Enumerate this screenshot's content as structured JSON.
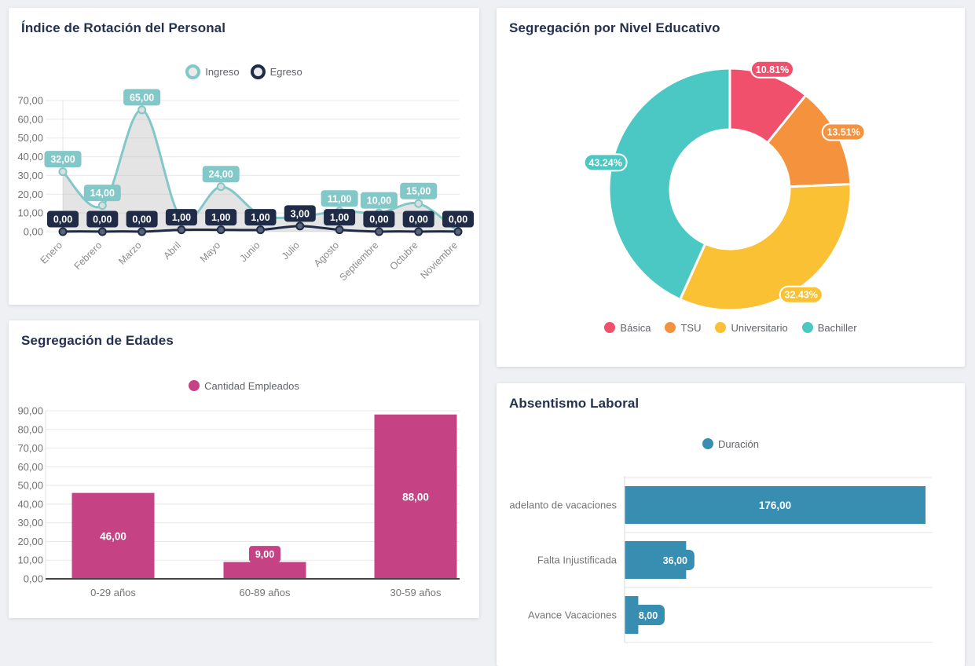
{
  "theme": {
    "page_bg": "#eef0f4",
    "panel_bg": "#ffffff",
    "title_color": "#24314f",
    "gridline": "#e8e8e8",
    "axis_text": "#737373",
    "category_text": "#757575",
    "legend_text": "#5f6368"
  },
  "chart_data": [
    {
      "id": "rotacion_personal",
      "type": "line",
      "title": "Índice de Rotación del Personal",
      "legend_position": "top",
      "grid": true,
      "ylim": [
        0,
        70
      ],
      "ytick_step": 10,
      "value_format": "comma-2dp",
      "categories": [
        "Enero",
        "Febrero",
        "Marzo",
        "Abril",
        "Mayo",
        "Junio",
        "Julio",
        "Agosto",
        "Septiembre",
        "Octubre",
        "Noviembre"
      ],
      "series": [
        {
          "name": "Ingreso",
          "color": "#82c8c8",
          "point_fill": "#dedede",
          "area_fill": "rgba(185,185,185,0.38)",
          "values": [
            32,
            14,
            65,
            7,
            24,
            9,
            8,
            11,
            10,
            15,
            0
          ],
          "labels_visible": [
            true,
            true,
            true,
            false,
            true,
            false,
            false,
            true,
            true,
            true,
            false
          ],
          "note": "labels for Abril, Junio, Julio and Noviembre are hidden behind Egreso labels; those values estimated from the curve"
        },
        {
          "name": "Egreso",
          "color": "#1f2b47",
          "point_fill": "#5a6478",
          "values": [
            0,
            0,
            0,
            1,
            1,
            1,
            3,
            1,
            0,
            0,
            0
          ],
          "labels_visible": [
            true,
            true,
            true,
            true,
            true,
            true,
            true,
            true,
            true,
            true,
            true
          ]
        }
      ]
    },
    {
      "id": "nivel_educativo",
      "type": "pie",
      "subtype": "donut",
      "title": "Segregación por Nivel Educativo",
      "legend_position": "bottom",
      "start": "12 o'clock, clockwise",
      "value_format": "percent-2dp",
      "labels": [
        "Básica",
        "TSU",
        "Universitario",
        "Bachiller"
      ],
      "values": [
        10.81,
        13.51,
        32.43,
        43.24
      ],
      "colors": [
        "#f1506c",
        "#f5923e",
        "#fbc135",
        "#4cc8c4"
      ]
    },
    {
      "id": "segregacion_edades",
      "type": "bar",
      "title": "Segregación de Edades",
      "legend": "Cantidad Empleados",
      "legend_position": "top",
      "color": "#c54285",
      "ylim": [
        0,
        90
      ],
      "ytick_step": 10,
      "value_format": "comma-2dp",
      "categories": [
        "0-29 años",
        "60-89 años",
        "30-59 años"
      ],
      "values": [
        46,
        9,
        88
      ]
    },
    {
      "id": "absentismo_laboral",
      "type": "bar",
      "orientation": "horizontal",
      "title": "Absentismo Laboral",
      "legend": "Duración",
      "legend_position": "top",
      "color": "#378eb0",
      "value_format": "comma-2dp",
      "categories": [
        "adelanto de vacaciones",
        "Falta Injustificada",
        "Avance Vacaciones"
      ],
      "values": [
        176,
        36,
        8
      ]
    }
  ]
}
